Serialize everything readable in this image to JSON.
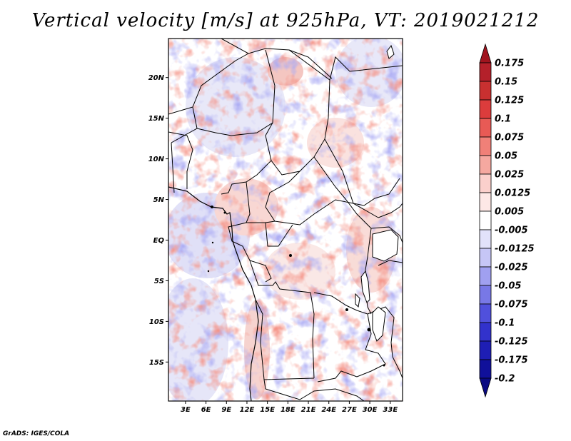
{
  "title": "Vertical velocity [m/s] at 925hPa, VT: 2019021212",
  "footer": "GrADS: IGES/COLA",
  "map": {
    "lat_labels": [
      "20N",
      "15N",
      "10N",
      "5N",
      "EQ",
      "5S",
      "10S",
      "15S"
    ],
    "lat_values": [
      20,
      15,
      10,
      5,
      0,
      -5,
      -10,
      -15
    ],
    "lon_labels": [
      "3E",
      "6E",
      "9E",
      "12E",
      "15E",
      "18E",
      "21E",
      "24E",
      "27E",
      "30E",
      "33E"
    ],
    "lon_values": [
      3,
      6,
      9,
      12,
      15,
      18,
      21,
      24,
      27,
      30,
      33
    ],
    "lon_range": [
      0.5,
      34.8
    ],
    "lat_range": [
      -19.8,
      24.8
    ],
    "positive_color": "#e8483c",
    "negative_color": "#4a4ae0"
  },
  "colorbar": {
    "labels": [
      "0.175",
      "0.15",
      "0.125",
      "0.1",
      "0.075",
      "0.05",
      "0.025",
      "0.0125",
      "0.005",
      "-0.005",
      "-0.0125",
      "-0.025",
      "-0.05",
      "-0.075",
      "-0.1",
      "-0.125",
      "-0.175",
      "-0.2"
    ],
    "colors": [
      "#a0141e",
      "#b4202a",
      "#c83030",
      "#dc3c3c",
      "#e85a55",
      "#f08078",
      "#f5a8a0",
      "#fbd0cc",
      "#fde8e6",
      "#ffffff",
      "#e2e2fa",
      "#c6c6f6",
      "#a0a0f0",
      "#7878e6",
      "#5050dc",
      "#3232cc",
      "#1e1eb4",
      "#10109a",
      "#0a0a82"
    ]
  }
}
